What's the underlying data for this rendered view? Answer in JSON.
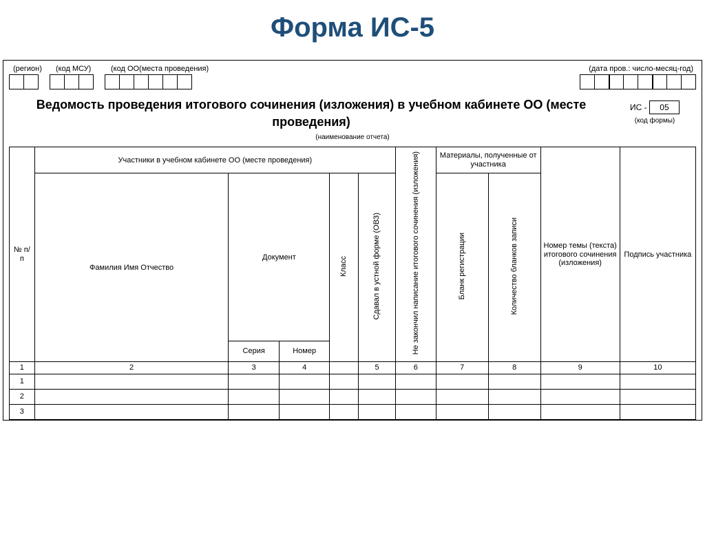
{
  "page_title": "Форма ИС-5",
  "colors": {
    "title": "#1f4e79",
    "border": "#000000",
    "text": "#000000",
    "background": "#ffffff"
  },
  "top_labels": {
    "region": "(регион)",
    "msu": "(код МСУ)",
    "oo": "(код ОО(места проведения)",
    "date": "(дата пров.: число-месяц-год)"
  },
  "cell_counts": {
    "region": 2,
    "msu": 3,
    "oo": 6,
    "date": 8
  },
  "main_title": "Ведомость проведения итогового сочинения (изложения) в учебном кабинете ОО (месте проведения)",
  "subtitle": "(наименование отчета)",
  "form_code": {
    "prefix": "ИС -",
    "value": "05",
    "caption": "(код формы)"
  },
  "table": {
    "headers": {
      "np": "№ п/п",
      "participants_group": "Участники в учебном кабинете ОО (месте проведения)",
      "fio": "Фамилия Имя Отчество",
      "doc": "Документ",
      "series": "Серия",
      "number": "Номер",
      "class": "Класс",
      "oral": "Сдавал в устной форме (ОВЗ)",
      "unfinished": "Не закончил написание итогового сочинения (изложения)",
      "materials_group": "Материалы, полученные от участника",
      "blank_reg": "Бланк регистрации",
      "blanks_count": "Количество бланков записи",
      "topic": "Номер темы (текста) итогового сочинения (изложения)",
      "signature": "Подпись участника"
    },
    "col_numbers": [
      "1",
      "2",
      "3",
      "4",
      "",
      "5",
      "6",
      "7",
      "8",
      "9",
      "10"
    ],
    "class_merge_value": "",
    "data_rows": [
      "1",
      "2",
      "3"
    ]
  }
}
